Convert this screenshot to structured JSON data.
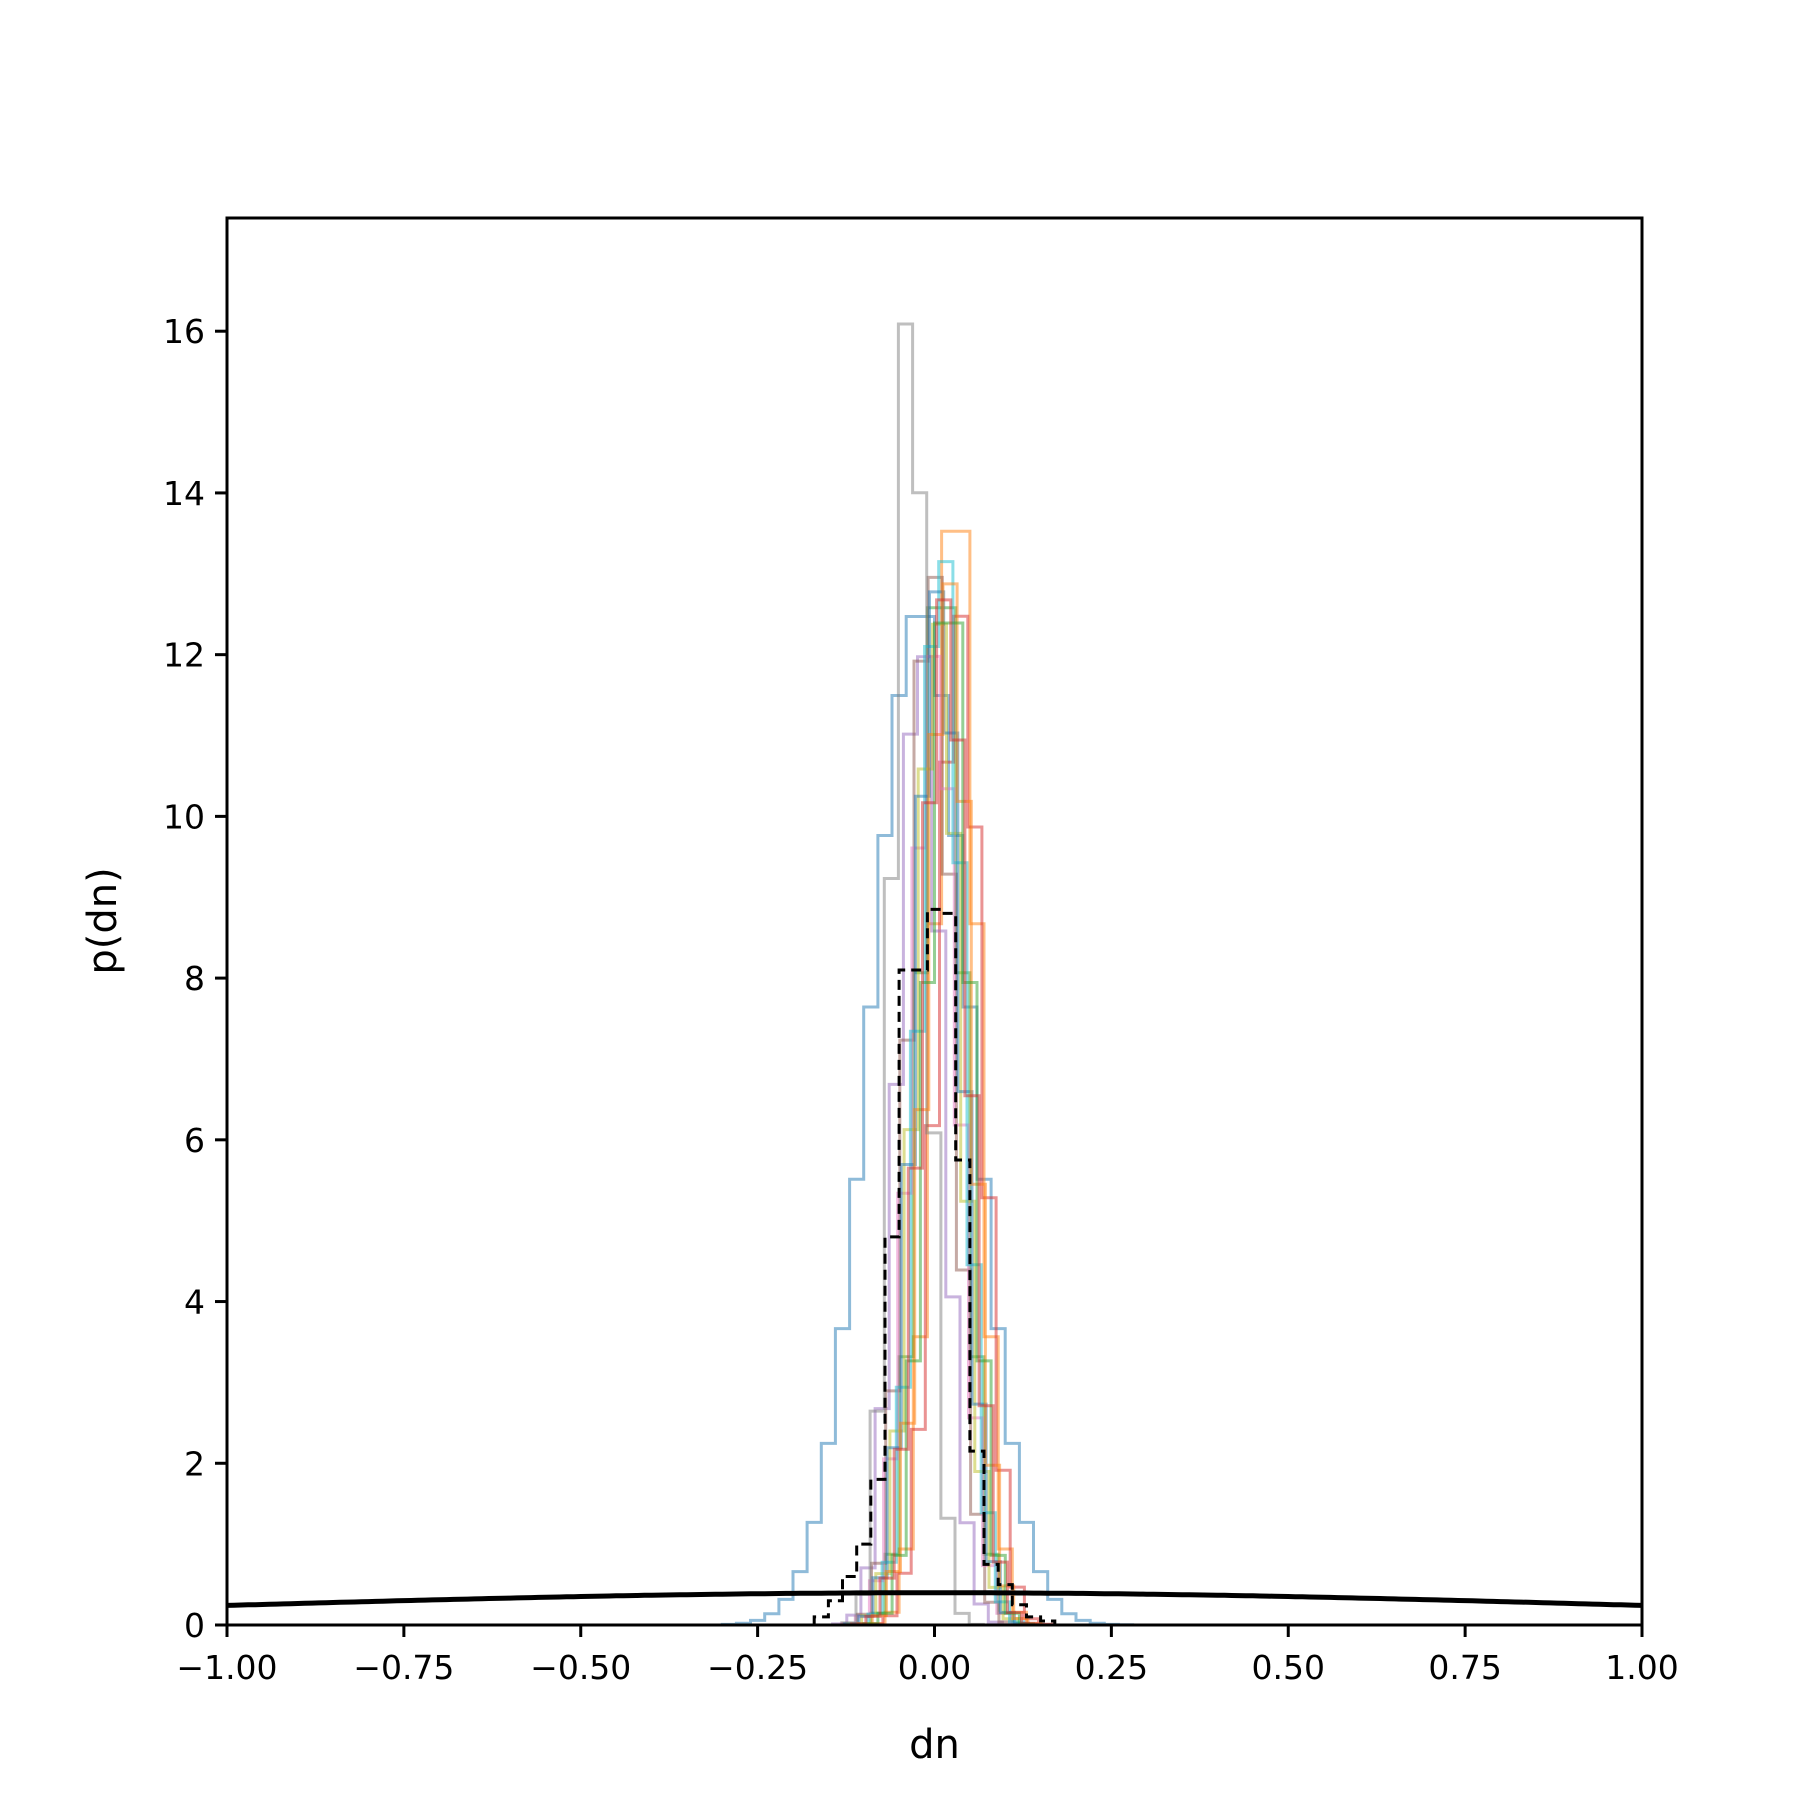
{
  "chart_data": {
    "type": "histogram",
    "title": "",
    "xlabel": "dn",
    "ylabel": "p(dn)",
    "xlim": [
      -1.0,
      1.0
    ],
    "ylim": [
      0,
      17.4
    ],
    "grid": false,
    "xticks": [
      -1.0,
      -0.75,
      -0.5,
      -0.25,
      0.0,
      0.25,
      0.5,
      0.75,
      1.0
    ],
    "xtick_labels": [
      "−1.00",
      "−0.75",
      "−0.50",
      "−0.25",
      "0.00",
      "0.25",
      "0.50",
      "0.75",
      "1.00"
    ],
    "yticks": [
      0,
      2,
      4,
      6,
      8,
      10,
      12,
      14,
      16
    ],
    "ytick_labels": [
      "0",
      "2",
      "4",
      "6",
      "8",
      "10",
      "12",
      "14",
      "16"
    ],
    "series": [
      {
        "color": "#1f77b4",
        "mu": -0.02,
        "sigma": 0.07,
        "peak": 12.6
      },
      {
        "color": "#ff7f0e",
        "mu": 0.03,
        "sigma": 0.03,
        "peak": 14.3
      },
      {
        "color": "#2ca02c",
        "mu": 0.01,
        "sigma": 0.03,
        "peak": 13.3
      },
      {
        "color": "#d62728",
        "mu": 0.035,
        "sigma": 0.032,
        "peak": 12.5
      },
      {
        "color": "#9467bd",
        "mu": -0.02,
        "sigma": 0.031,
        "peak": 12.2
      },
      {
        "color": "#8c564b",
        "mu": -0.005,
        "sigma": 0.031,
        "peak": 13.2
      },
      {
        "color": "#e377c2",
        "mu": 0.0,
        "sigma": 0.033,
        "peak": 12.0
      },
      {
        "color": "#7f7f7f",
        "mu": -0.035,
        "sigma": 0.024,
        "peak": 16.6
      },
      {
        "color": "#bcbd22",
        "mu": 0.005,
        "sigma": 0.032,
        "peak": 12.4
      },
      {
        "color": "#17becf",
        "mu": 0.01,
        "sigma": 0.031,
        "peak": 13.4
      },
      {
        "color": "#1f77b4",
        "mu": 0.005,
        "sigma": 0.033,
        "peak": 12.8
      },
      {
        "color": "#ff7f0e",
        "mu": 0.02,
        "sigma": 0.032,
        "peak": 12.9
      },
      {
        "color": "#2ca02c",
        "mu": 0.02,
        "sigma": 0.03,
        "peak": 13.1
      },
      {
        "color": "#d62728",
        "mu": 0.015,
        "sigma": 0.033,
        "peak": 12.7
      }
    ],
    "combined_dashed": {
      "color": "#000000",
      "bins": [
        [
          -0.17,
          -0.15,
          0.1
        ],
        [
          -0.15,
          -0.13,
          0.3
        ],
        [
          -0.13,
          -0.11,
          0.6
        ],
        [
          -0.11,
          -0.09,
          1.0
        ],
        [
          -0.09,
          -0.07,
          1.8
        ],
        [
          -0.07,
          -0.05,
          4.8
        ],
        [
          -0.05,
          -0.03,
          8.1
        ],
        [
          -0.03,
          -0.01,
          8.1
        ],
        [
          -0.01,
          0.01,
          8.85
        ],
        [
          0.01,
          0.03,
          8.8
        ],
        [
          0.03,
          0.05,
          5.75
        ],
        [
          0.05,
          0.07,
          2.15
        ],
        [
          0.07,
          0.09,
          0.75
        ],
        [
          0.09,
          0.11,
          0.5
        ],
        [
          0.11,
          0.13,
          0.25
        ],
        [
          0.13,
          0.15,
          0.1
        ],
        [
          0.15,
          0.17,
          0.05
        ]
      ]
    },
    "prior_curve": {
      "color": "#000000",
      "mu": 0.0,
      "sigma": 1.0,
      "type": "normal-pdf"
    }
  }
}
